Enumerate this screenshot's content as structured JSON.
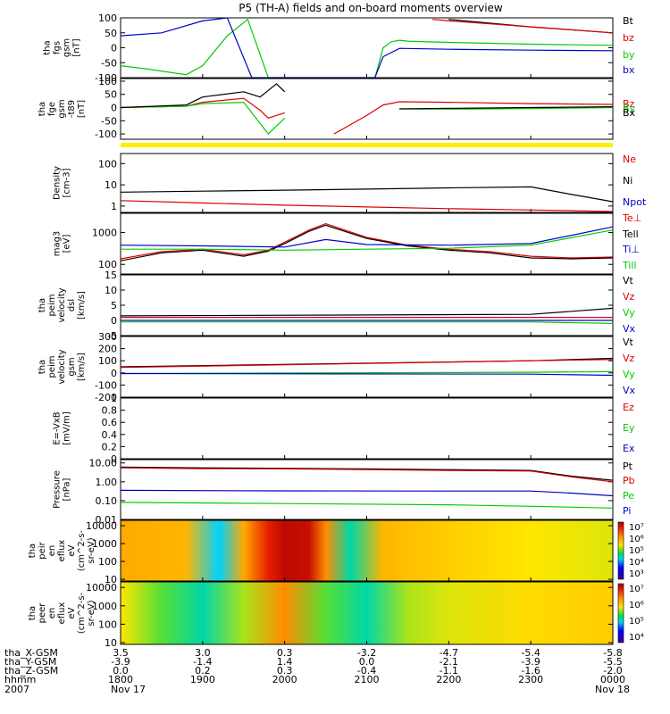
{
  "title": "P5 (TH-A) fields and on-board moments overview",
  "colors": {
    "black": "#000000",
    "red": "#dd0000",
    "green": "#00cc00",
    "blue": "#0000cc",
    "yellow": "#ffee00"
  },
  "chart_data": [
    {
      "type": "line",
      "ylabel_lines": [
        "tha",
        "fgs",
        "gsm",
        "[nT]"
      ],
      "ylim": [
        -100,
        100
      ],
      "ticks": [
        100,
        50,
        0,
        -50,
        -100
      ],
      "series": [
        {
          "name": "Bt",
          "color": "black",
          "x": [
            17.5,
            18,
            19,
            20,
            21,
            22,
            23,
            24
          ],
          "values": [
            null,
            null,
            null,
            null,
            null,
            95,
            70,
            50
          ]
        },
        {
          "name": "bz",
          "color": "red",
          "x": [
            21.8,
            22,
            22.5,
            23,
            23.5,
            24
          ],
          "values": [
            95,
            90,
            80,
            70,
            60,
            50
          ]
        },
        {
          "name": "by",
          "color": "green",
          "x": [
            18,
            18.3,
            18.8,
            19,
            19.3,
            19.55,
            19.8,
            20,
            20.5,
            21.1,
            21.2,
            21.3,
            21.4,
            21.5,
            22,
            23,
            24
          ],
          "values": [
            -60,
            -70,
            -90,
            -60,
            40,
            95,
            -100,
            -100,
            -100,
            -100,
            0,
            20,
            25,
            22,
            18,
            12,
            8
          ]
        },
        {
          "name": "bx",
          "color": "blue",
          "x": [
            18,
            18.5,
            19,
            19.3,
            19.6,
            20,
            20.5,
            21.1,
            21.2,
            21.4,
            22,
            23,
            24
          ],
          "values": [
            40,
            50,
            90,
            100,
            -100,
            -100,
            -100,
            -100,
            -30,
            -2,
            -5,
            -8,
            -10
          ]
        }
      ]
    },
    {
      "type": "line",
      "ylabel_lines": [
        "tha",
        "fge",
        "gsm",
        "-t89",
        "[nT]"
      ],
      "ylim": [
        -120,
        110
      ],
      "ticks": [
        100,
        50,
        0,
        -50,
        -100
      ],
      "series": [
        {
          "name": "Bz",
          "color": "red",
          "x": [
            18,
            18.8,
            19,
            19.5,
            19.7,
            19.8,
            20,
            20.5,
            20.6,
            21,
            21.2,
            21.4,
            22,
            23,
            24
          ],
          "values": [
            0,
            5,
            20,
            35,
            -10,
            -40,
            -20,
            null,
            -100,
            -30,
            10,
            22,
            20,
            15,
            12
          ]
        },
        {
          "name": "By",
          "color": "green",
          "x": [
            18,
            18.8,
            19,
            19.5,
            19.7,
            19.8,
            20,
            20.5,
            21.2,
            21.4,
            22,
            23,
            24
          ],
          "values": [
            0,
            5,
            15,
            20,
            -60,
            -100,
            -40,
            null,
            null,
            -5,
            -6,
            -4,
            0
          ]
        },
        {
          "name": "Bx",
          "color": "black",
          "x": [
            18,
            18.8,
            19,
            19.5,
            19.7,
            19.9,
            20,
            20.5,
            21.2,
            21.4,
            22,
            23,
            24
          ],
          "values": [
            0,
            10,
            40,
            60,
            40,
            90,
            60,
            null,
            null,
            -5,
            -3,
            0,
            3
          ]
        }
      ]
    },
    {
      "type": "line",
      "ylabel_lines": [
        "Density",
        "[cm-3]"
      ],
      "scale": "log",
      "ylim": [
        0.5,
        300
      ],
      "ticks": [
        100,
        10,
        1
      ],
      "series": [
        {
          "name": "Ne",
          "color": "red",
          "x": [
            18,
            19,
            20,
            21,
            22,
            23,
            23.5,
            24
          ],
          "values": [
            1.8,
            1.4,
            1.1,
            0.9,
            0.75,
            0.65,
            0.6,
            0.55
          ]
        },
        {
          "name": "Ni",
          "color": "black",
          "x": [
            18,
            19,
            20,
            21,
            22,
            23,
            23.5,
            24
          ],
          "values": [
            4.5,
            5,
            5.6,
            6.3,
            7.2,
            8,
            3.5,
            1.6
          ]
        },
        {
          "name": "Npot",
          "color": "blue",
          "x": [],
          "values": []
        }
      ]
    },
    {
      "type": "line",
      "ylabel_lines": [
        "mag3",
        "[eV]"
      ],
      "scale": "log",
      "ylim": [
        50,
        4000
      ],
      "ticks": [
        1000,
        100
      ],
      "series": [
        {
          "name": "Te⊥",
          "color": "red",
          "x": [
            18,
            18.5,
            19,
            19.5,
            19.8,
            20,
            20.3,
            20.5,
            21,
            21.5,
            22,
            22.5,
            23,
            23.5,
            24
          ],
          "values": [
            150,
            250,
            300,
            200,
            280,
            500,
            1200,
            1900,
            700,
            400,
            300,
            250,
            180,
            160,
            170
          ]
        },
        {
          "name": "Tell",
          "color": "black",
          "x": [
            18,
            18.5,
            19,
            19.5,
            19.8,
            20,
            20.3,
            20.5,
            21,
            21.5,
            22,
            22.5,
            23,
            23.5,
            24
          ],
          "values": [
            130,
            230,
            280,
            180,
            260,
            450,
            1100,
            1700,
            650,
            380,
            280,
            230,
            160,
            150,
            160
          ]
        },
        {
          "name": "Ti⊥",
          "color": "blue",
          "x": [
            18,
            19,
            20,
            20.5,
            21,
            22,
            23,
            24
          ],
          "values": [
            400,
            380,
            350,
            600,
            420,
            400,
            450,
            1500
          ]
        },
        {
          "name": "Till",
          "color": "green",
          "x": [
            18,
            19,
            20,
            21,
            22,
            23,
            24
          ],
          "values": [
            300,
            300,
            280,
            300,
            320,
            400,
            1200
          ]
        }
      ]
    },
    {
      "type": "line",
      "ylabel_lines": [
        "tha",
        "peim",
        "velocity",
        "dsl",
        "[km/s]"
      ],
      "ylim": [
        -5,
        15
      ],
      "ticks": [
        15,
        10,
        5,
        0,
        -5
      ],
      "series": [
        {
          "name": "Vt",
          "color": "black",
          "x": [
            18,
            23,
            24
          ],
          "values": [
            1.5,
            2,
            4
          ]
        },
        {
          "name": "Vz",
          "color": "red",
          "x": [
            18,
            23,
            24
          ],
          "values": [
            1,
            1,
            1
          ]
        },
        {
          "name": "Vy",
          "color": "green",
          "x": [
            18,
            23,
            24
          ],
          "values": [
            -0.5,
            -0.5,
            -1
          ]
        },
        {
          "name": "Vx",
          "color": "blue",
          "x": [
            18,
            23,
            24
          ],
          "values": [
            0,
            0,
            0
          ]
        }
      ]
    },
    {
      "type": "line",
      "ylabel_lines": [
        "tha",
        "peim",
        "velocity",
        "gsm",
        "[km/s]"
      ],
      "ylim": [
        -200,
        300
      ],
      "ticks": [
        300,
        200,
        100,
        0,
        -100,
        -200
      ],
      "series": [
        {
          "name": "Vt",
          "color": "black",
          "x": [
            18,
            23,
            24
          ],
          "values": [
            50,
            100,
            120
          ]
        },
        {
          "name": "Vz",
          "color": "red",
          "x": [
            18,
            23,
            24
          ],
          "values": [
            45,
            100,
            110
          ]
        },
        {
          "name": "Vy",
          "color": "green",
          "x": [
            18,
            23,
            24
          ],
          "values": [
            -5,
            5,
            10
          ]
        },
        {
          "name": "Vx",
          "color": "blue",
          "x": [
            18,
            23,
            24
          ],
          "values": [
            -5,
            -10,
            -20
          ]
        }
      ]
    },
    {
      "type": "line",
      "ylabel_lines": [
        "E=-VxB",
        "[mV/m]"
      ],
      "ylim": [
        0,
        1
      ],
      "ticks": [
        1.0,
        0.8,
        0.6,
        0.4,
        0.2,
        0.0
      ],
      "series": [
        {
          "name": "Ez",
          "color": "red",
          "x": [],
          "values": []
        },
        {
          "name": "Ey",
          "color": "green",
          "x": [],
          "values": []
        },
        {
          "name": "Ex",
          "color": "blue",
          "x": [],
          "values": []
        }
      ]
    },
    {
      "type": "line",
      "ylabel_lines": [
        "Pressure",
        "[nPa]"
      ],
      "scale": "log",
      "ylim": [
        0.01,
        15
      ],
      "ticks": [
        10.0,
        1.0,
        0.1,
        0.01
      ],
      "ticklabels": [
        "10.00",
        "1.00",
        "0.10",
        "0.01"
      ],
      "series": [
        {
          "name": "Pt",
          "color": "black",
          "x": [
            18,
            19,
            20,
            21,
            22,
            23,
            23.5,
            24
          ],
          "values": [
            6,
            5.5,
            5.2,
            4.8,
            4.4,
            4,
            2,
            1.2
          ]
        },
        {
          "name": "Pb",
          "color": "red",
          "x": [
            18,
            19,
            20,
            21,
            22,
            23,
            23.5,
            24
          ],
          "values": [
            5.5,
            5,
            4.8,
            4.4,
            4,
            3.7,
            1.8,
            1
          ]
        },
        {
          "name": "Pe",
          "color": "green",
          "x": [
            18,
            20,
            22,
            23,
            24
          ],
          "values": [
            0.08,
            0.07,
            0.06,
            0.05,
            0.04
          ]
        },
        {
          "name": "Pi",
          "color": "blue",
          "x": [
            18,
            20,
            22,
            23,
            23.5,
            24
          ],
          "values": [
            0.35,
            0.33,
            0.32,
            0.32,
            0.25,
            0.18
          ]
        }
      ]
    },
    {
      "type": "heatmap",
      "ylabel_lines": [
        "tha",
        "peir",
        "en",
        "eflux",
        "eV",
        "(cm^2-s-",
        "sr-eV)"
      ],
      "ylim_log": [
        8,
        20000
      ],
      "ticks": [
        10000,
        1000,
        100,
        10
      ],
      "colorbar_labels": [
        "10⁷",
        "10⁶",
        "10⁵",
        "10⁴",
        "10³"
      ],
      "bands_x": [
        18,
        18.8,
        19.2,
        19.5,
        19.8,
        20,
        20.3,
        20.5,
        20.8,
        21.2,
        21.6,
        22,
        23,
        24
      ],
      "bands_level": [
        0.7,
        0.68,
        0.35,
        0.7,
        0.9,
        0.97,
        0.95,
        0.75,
        0.4,
        0.68,
        0.66,
        0.64,
        0.6,
        0.58
      ]
    },
    {
      "type": "heatmap",
      "ylabel_lines": [
        "tha",
        "peer",
        "en",
        "eflux",
        "eV",
        "(cm^2-s-",
        "sr-eV)"
      ],
      "ylim_log": [
        8,
        20000
      ],
      "ticks": [
        10000,
        1000,
        100,
        10
      ],
      "colorbar_labels": [
        "10⁷",
        "10⁶",
        "10⁵",
        "10⁴"
      ],
      "bands_x": [
        18,
        18.5,
        19,
        19.5,
        20,
        20.5,
        21,
        21.5,
        22,
        23,
        24
      ],
      "bands_level": [
        0.6,
        0.5,
        0.4,
        0.55,
        0.75,
        0.5,
        0.4,
        0.55,
        0.58,
        0.62,
        0.64
      ]
    }
  ],
  "legend_sets": [
    [
      "Bt",
      "bz",
      "by",
      "bx"
    ],
    [
      "Bz",
      "By",
      "Bx"
    ],
    [
      "Ne",
      "Ni",
      "Npot"
    ],
    [
      "Te⊥",
      "Tell",
      "Ti⊥",
      "Till"
    ],
    [
      "Vt",
      "Vz",
      "Vy",
      "Vx"
    ],
    [
      "Vt",
      "Vz",
      "Vy",
      "Vx"
    ],
    [
      "Ez",
      "Ey",
      "Ex"
    ],
    [
      "Pt",
      "Pb",
      "Pe",
      "Pi"
    ]
  ],
  "xaxis": {
    "range": [
      18,
      24
    ],
    "tick_hours": [
      18,
      19,
      20,
      21,
      22,
      23,
      24
    ],
    "rows": [
      {
        "label": "tha_X-GSM",
        "values": [
          "3.5",
          "3.0",
          "0.3",
          "-3.2",
          "-4.7",
          "-5.4",
          "-5.8"
        ]
      },
      {
        "label": "tha_Y-GSM",
        "values": [
          "-3.9",
          "-1.4",
          "1.4",
          "0.0",
          "-2.1",
          "-3.9",
          "-5.5"
        ]
      },
      {
        "label": "tha_Z-GSM",
        "values": [
          "0.0",
          "0.2",
          "0.3",
          "-0.4",
          "-1.1",
          "-1.6",
          "-2.0"
        ]
      },
      {
        "label": "hhmm",
        "values": [
          "1800",
          "1900",
          "2000",
          "2100",
          "2200",
          "2300",
          "0000"
        ]
      }
    ],
    "year": "2007",
    "date_start": "Nov 17",
    "date_end": "Nov 18"
  }
}
